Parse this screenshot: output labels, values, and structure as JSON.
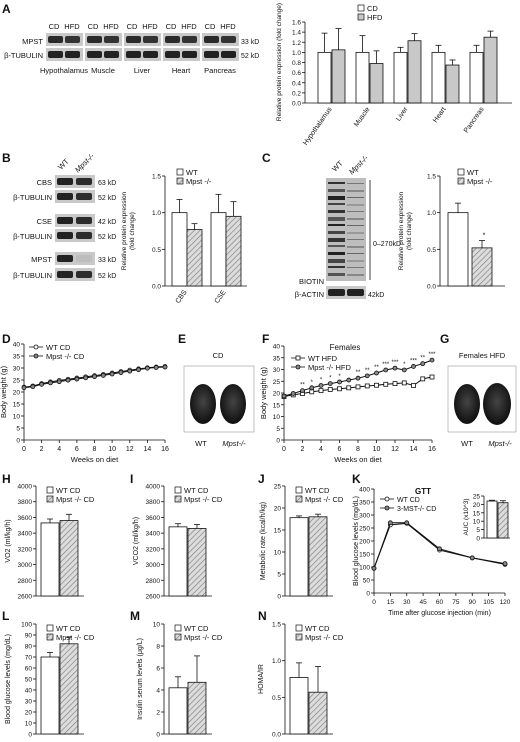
{
  "panels": {
    "A": {
      "letter": "A",
      "blot": {
        "lanes": [
          "CD",
          "HFD"
        ],
        "tissues": [
          "Hypothalamus",
          "Muscle",
          "Liver",
          "Heart",
          "Pancreas"
        ],
        "rows": [
          "MPST",
          "β-TUBULIN"
        ],
        "sizes": [
          "33 kD",
          "52 kD"
        ]
      },
      "chart": {
        "type": "bar",
        "legend": [
          "CD",
          "HFD"
        ],
        "ylabel": "Relative protein expression (fold change)",
        "ylim": [
          0,
          1.6
        ],
        "yticks": [
          "0.0",
          "0.2",
          "0.4",
          "0.6",
          "0.8",
          "1.0",
          "1.2",
          "1.4",
          "1.6"
        ],
        "categories": [
          "Hypothalamus",
          "Muscle",
          "Liver",
          "Heart",
          "Pancreas"
        ],
        "series": [
          {
            "name": "CD",
            "values": [
              1.0,
              1.0,
              1.0,
              1.0,
              1.0
            ],
            "err": [
              0.38,
              0.33,
              0.1,
              0.14,
              0.14
            ]
          },
          {
            "name": "HFD",
            "values": [
              1.05,
              0.78,
              1.23,
              0.75,
              1.3
            ],
            "err": [
              0.42,
              0.25,
              0.14,
              0.1,
              0.12
            ]
          }
        ]
      }
    },
    "B": {
      "letter": "B",
      "lanes": [
        "WT",
        "Mpst-/-"
      ],
      "rows": [
        "CBS",
        "β-TUBULIN",
        "CSE",
        "β-TUBULIN",
        "MPST",
        "β-TUBULIN"
      ],
      "sizes": [
        "63 kD",
        "52 kD",
        "42 kD",
        "52 kD",
        "33 kD",
        "52 kD"
      ],
      "chart": {
        "type": "bar",
        "legend": [
          "WT",
          "Mpst -/-"
        ],
        "ylabel": "Relative protein expression (fold change)",
        "ylim": [
          0,
          1.5
        ],
        "yticks": [
          "0.0",
          "0.5",
          "1.0",
          "1.5"
        ],
        "categories": [
          "CBS",
          "CSE"
        ],
        "series": [
          {
            "name": "WT",
            "values": [
              1.0,
              1.0
            ],
            "err": [
              0.18,
              0.25
            ]
          },
          {
            "name": "Mpst -/-",
            "values": [
              0.77,
              0.95
            ],
            "err": [
              0.08,
              0.2
            ]
          }
        ]
      }
    },
    "C": {
      "letter": "C",
      "lanes": [
        "WT",
        "Mpst-/-"
      ],
      "bracket_label": "0–270kD",
      "rows": [
        "BIOTIN",
        "β-ACTIN"
      ],
      "size": "42kD",
      "chart": {
        "type": "bar",
        "legend": [
          "WT",
          "Mpst -/-"
        ],
        "ylabel": "Relative protein expression (fold change)",
        "ylim": [
          0,
          1.5
        ],
        "yticks": [
          "0.0",
          "0.5",
          "1.0",
          "1.5"
        ],
        "categories": [
          "WT",
          "Mpst -/-"
        ],
        "values": [
          1.0,
          0.52
        ],
        "err": [
          0.13,
          0.1
        ],
        "star": "*"
      }
    },
    "D": {
      "letter": "D",
      "chart": {
        "type": "line",
        "legend": [
          "WT CD",
          "Mpst -/- CD"
        ],
        "xlabel": "Weeks on diet",
        "ylabel": "Body weight (g)",
        "xlim": [
          0,
          16
        ],
        "ylim": [
          0,
          40
        ],
        "xticks": [
          "0",
          "2",
          "4",
          "6",
          "8",
          "10",
          "12",
          "14",
          "16"
        ],
        "yticks": [
          "0",
          "5",
          "10",
          "15",
          "20",
          "25",
          "30",
          "35",
          "40"
        ],
        "x": [
          0,
          1,
          2,
          3,
          4,
          5,
          6,
          7,
          8,
          9,
          10,
          11,
          12,
          13,
          14,
          15,
          16
        ],
        "series": [
          {
            "name": "WT CD",
            "values": [
              22,
              22.5,
              23.5,
              24.2,
              24.8,
              25.3,
              25.8,
              26.3,
              26.8,
              27.3,
              27.9,
              28.5,
              29.1,
              29.6,
              30.1,
              30.4,
              30.6
            ]
          },
          {
            "name": "Mpst -/- CD",
            "values": [
              21.8,
              22.2,
              23.2,
              23.8,
              24.3,
              24.9,
              25.4,
              25.9,
              26.4,
              26.9,
              27.5,
              28.1,
              28.7,
              29.3,
              29.9,
              30.2,
              30.4
            ]
          }
        ]
      }
    },
    "E": {
      "letter": "E",
      "title": "CD",
      "labels": [
        "WT",
        "Mpst-/-"
      ]
    },
    "F": {
      "letter": "F",
      "chart": {
        "type": "line",
        "title": "Females",
        "legend": [
          "WT HFD",
          "Mpst -/- HFD"
        ],
        "xlabel": "Weeks on diet",
        "ylabel": "Body weight (g)",
        "xlim": [
          0,
          16
        ],
        "ylim": [
          0,
          40
        ],
        "xticks": [
          "0",
          "2",
          "4",
          "6",
          "8",
          "10",
          "12",
          "14",
          "16"
        ],
        "yticks": [
          "0",
          "5",
          "10",
          "15",
          "20",
          "25",
          "30",
          "35",
          "40"
        ],
        "x": [
          0,
          1,
          2,
          3,
          4,
          5,
          6,
          7,
          8,
          9,
          10,
          11,
          12,
          13,
          14,
          15,
          16
        ],
        "series": [
          {
            "name": "WT HFD",
            "values": [
              18.5,
              19.2,
              19.8,
              20.5,
              21,
              21.5,
              21.8,
              22.2,
              22.6,
              23,
              23.3,
              23.7,
              24,
              24.3,
              23.2,
              26,
              26.8
            ]
          },
          {
            "name": "Mpst -/- HFD",
            "values": [
              18.7,
              19.8,
              21,
              22.2,
              23.2,
              24,
              24.7,
              25.5,
              26.3,
              27.3,
              28.5,
              29.8,
              30.6,
              29.8,
              31.3,
              32.5,
              34
            ]
          }
        ],
        "stars": [
          {
            "x": 2,
            "label": "**"
          },
          {
            "x": 3,
            "label": "*"
          },
          {
            "x": 4,
            "label": "*"
          },
          {
            "x": 5,
            "label": "*"
          },
          {
            "x": 6,
            "label": "*"
          },
          {
            "x": 8,
            "label": "**"
          },
          {
            "x": 9,
            "label": "**"
          },
          {
            "x": 10,
            "label": "**"
          },
          {
            "x": 11,
            "label": "***"
          },
          {
            "x": 12,
            "label": "***"
          },
          {
            "x": 13,
            "label": "*"
          },
          {
            "x": 14,
            "label": "***"
          },
          {
            "x": 15,
            "label": "**"
          },
          {
            "x": 16,
            "label": "***"
          }
        ]
      }
    },
    "G": {
      "letter": "G",
      "title": "Females HFD",
      "labels": [
        "WT",
        "Mpst-/-"
      ]
    },
    "H": {
      "letter": "H",
      "chart": {
        "type": "bar",
        "legend": [
          "WT CD",
          "Mpst -/- CD"
        ],
        "ylabel": "VO2 (ml/kg/h)",
        "ylim": [
          2600,
          4000
        ],
        "yticks": [
          "2600",
          "2800",
          "3000",
          "3200",
          "3400",
          "3600",
          "3800",
          "4000"
        ],
        "values": [
          3530,
          3560
        ],
        "err": [
          50,
          80
        ]
      }
    },
    "I": {
      "letter": "I",
      "chart": {
        "type": "bar",
        "legend": [
          "WT CD",
          "Mpst -/- CD"
        ],
        "ylabel": "VCO2 (ml/kg/h)",
        "ylim": [
          2600,
          4000
        ],
        "yticks": [
          "2600",
          "2800",
          "3000",
          "3200",
          "3400",
          "3600",
          "3800",
          "4000"
        ],
        "values": [
          3480,
          3460
        ],
        "err": [
          40,
          50
        ]
      }
    },
    "J": {
      "letter": "J",
      "chart": {
        "type": "bar",
        "legend": [
          "WT CD",
          "Mpst -/- CD"
        ],
        "ylabel": "Metabolic rate (kcal/h/kg)",
        "ylim": [
          0,
          25
        ],
        "yticks": [
          "0",
          "5",
          "10",
          "15",
          "20",
          "25"
        ],
        "values": [
          17.8,
          18.0
        ],
        "err": [
          0.4,
          0.6
        ]
      }
    },
    "K": {
      "letter": "K",
      "chart": {
        "type": "line",
        "title": "GTT",
        "legend": [
          "WT CD",
          "3-MST-/- CD"
        ],
        "xlabel": "Time after glucose injection (min)",
        "ylabel": "Blood glucose levels (mg/dL)",
        "xlim": [
          0,
          120
        ],
        "ylim": [
          0,
          400
        ],
        "xticks": [
          "0",
          "15",
          "30",
          "45",
          "60",
          "75",
          "90",
          "105",
          "120"
        ],
        "yticks": [
          "0",
          "50",
          "100",
          "150",
          "200",
          "250",
          "300",
          "350",
          "400"
        ],
        "x": [
          0,
          15,
          30,
          60,
          90,
          120
        ],
        "series": [
          {
            "name": "WT CD",
            "values": [
              95,
              262,
              268,
              165,
              135,
              110
            ]
          },
          {
            "name": "3-MST-/- CD",
            "values": [
              95,
              270,
              270,
              170,
              135,
              113
            ]
          }
        ]
      },
      "inset": {
        "ylabel": "AUC (x10^3)",
        "ylim": [
          0,
          25
        ],
        "yticks": [
          "0",
          "5",
          "10",
          "15",
          "20",
          "25"
        ],
        "values": [
          22,
          21
        ],
        "err": [
          0.5,
          1.2
        ]
      }
    },
    "L": {
      "letter": "L",
      "chart": {
        "type": "bar",
        "legend": [
          "WT CD",
          "Mpst -/- CD"
        ],
        "ylabel": "Blood glucose levels (mg/dL)",
        "ylim": [
          0,
          100
        ],
        "yticks": [
          "0",
          "10",
          "20",
          "30",
          "40",
          "50",
          "60",
          "70",
          "80",
          "90",
          "100"
        ],
        "values": [
          70,
          82
        ],
        "err": [
          4,
          6
        ]
      }
    },
    "M": {
      "letter": "M",
      "chart": {
        "type": "bar",
        "legend": [
          "WT CD",
          "Mpst -/- CD"
        ],
        "ylabel": "Insulin serum levels (μg/L)",
        "ylim": [
          0,
          10
        ],
        "yticks": [
          "0",
          "2",
          "4",
          "6",
          "8",
          "10"
        ],
        "values": [
          4.2,
          4.7
        ],
        "err": [
          1.0,
          2.4
        ]
      }
    },
    "N": {
      "letter": "N",
      "chart": {
        "type": "bar",
        "legend": [
          "WT CD",
          "Mpst -/- CD"
        ],
        "ylabel": "HOMA/IR",
        "ylim": [
          0,
          1.5
        ],
        "yticks": [
          "0.0",
          "0.5",
          "1.0",
          "1.5"
        ],
        "values": [
          0.77,
          0.57
        ],
        "err": [
          0.2,
          0.35
        ]
      }
    }
  }
}
